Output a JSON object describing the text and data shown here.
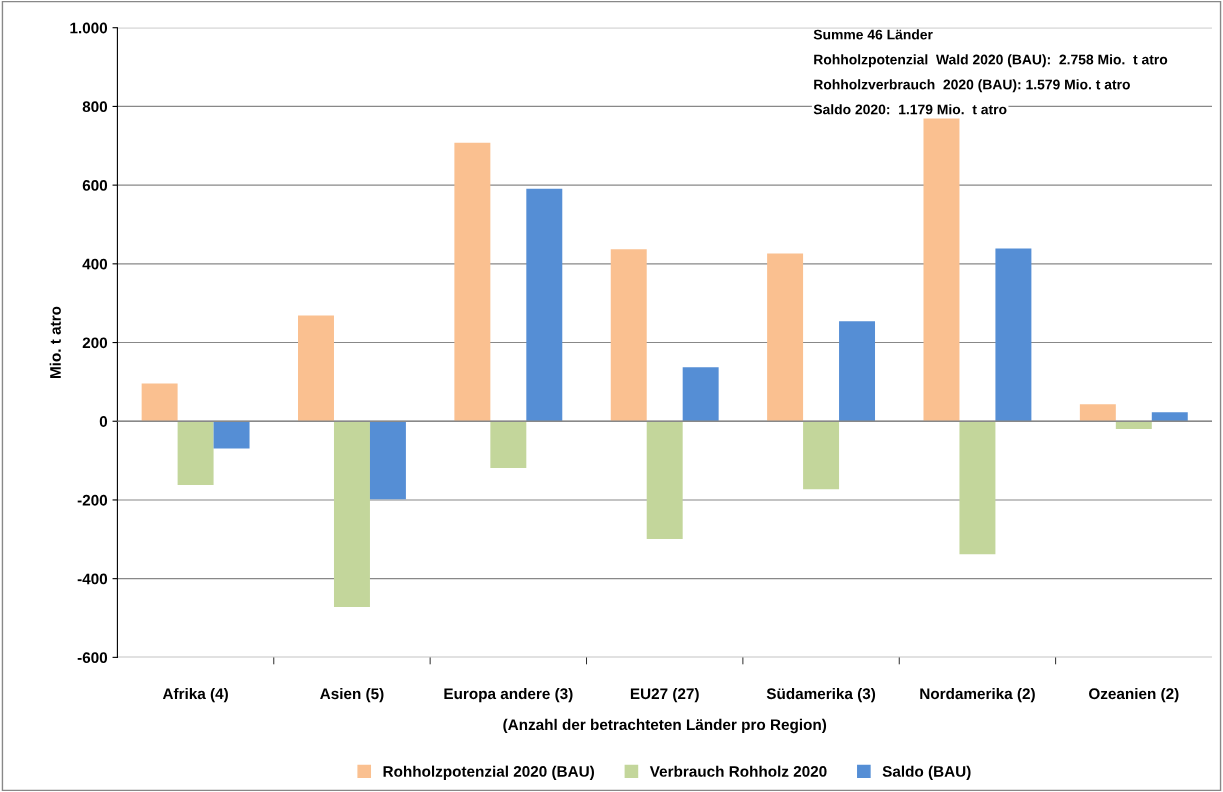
{
  "chart_data": {
    "type": "bar",
    "ylabel": "Mio. t atro",
    "xlabel": "(Anzahl der betrachteten Länder pro Region)",
    "categories": [
      "Afrika (4)",
      "Asien (5)",
      "Europa andere (3)",
      "EU27 (27)",
      "Südamerika (3)",
      "Nordamerika (2)",
      "Ozeanien (2)"
    ],
    "series": [
      {
        "name": "Rohholzpotenzial 2020 (BAU)",
        "color": "#fac090",
        "values": [
          96,
          269,
          708,
          437,
          426,
          772,
          43
        ]
      },
      {
        "name": "Verbrauch Rohholz 2020",
        "color": "#c3d69b",
        "values": [
          -162,
          -472,
          -119,
          -299,
          -173,
          -338,
          -20
        ]
      },
      {
        "name": "Saldo (BAU)",
        "color": "#558ed5",
        "values": [
          -69,
          -198,
          591,
          137,
          254,
          439,
          23
        ]
      }
    ],
    "ylim": [
      -600,
      1000
    ],
    "yticks": [
      {
        "value": 1000,
        "label": "1.000"
      },
      800,
      600,
      400,
      200,
      0,
      -200,
      -400,
      -600
    ],
    "grid": "y",
    "legend": "bottom",
    "annotations": [
      "Summe 46 Länder",
      "Rohholzpotenzial  Wald 2020 (BAU):  2.758 Mio.  t atro",
      "Rohholzverbrauch  2020 (BAU): 1.579 Mio. t atro",
      "Saldo 2020:  1.179 Mio.  t atro"
    ]
  }
}
